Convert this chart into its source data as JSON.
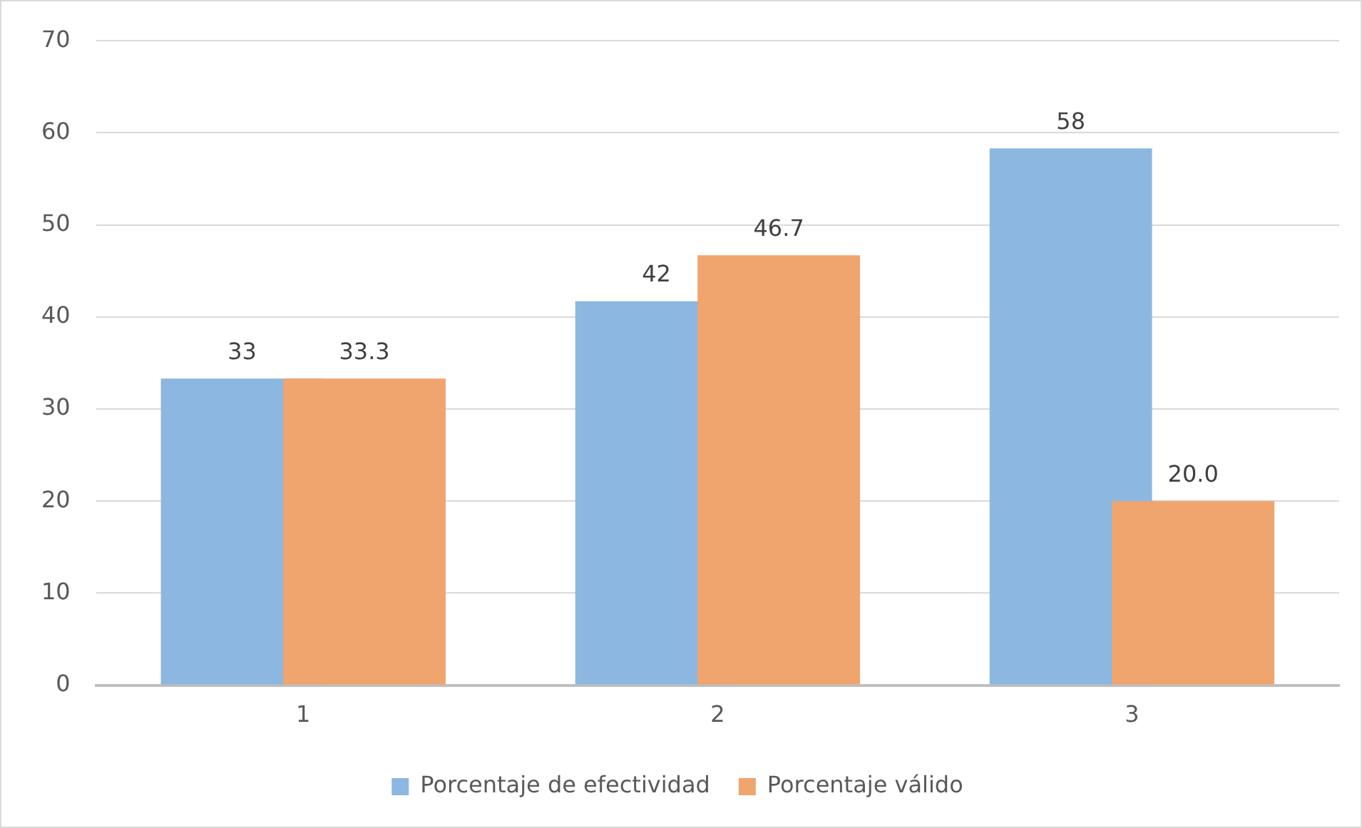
{
  "chart_data": {
    "type": "bar",
    "categories": [
      "1",
      "2",
      "3"
    ],
    "series": [
      {
        "name": "Porcentaje de efectividad",
        "color": "#8cb7e0",
        "values": [
          33.3,
          41.7,
          58.3
        ],
        "value_labels": [
          "33",
          "42",
          "58"
        ]
      },
      {
        "name": "Porcentaje válido",
        "color": "#f0a46e",
        "values": [
          33.3,
          46.7,
          20.0
        ],
        "value_labels": [
          "33.3",
          "46.7",
          "20.0"
        ]
      }
    ],
    "ylim": [
      0,
      70
    ],
    "yticks": [
      0,
      10,
      20,
      30,
      40,
      50,
      60,
      70
    ],
    "grid": "y",
    "legend": "bottom"
  }
}
